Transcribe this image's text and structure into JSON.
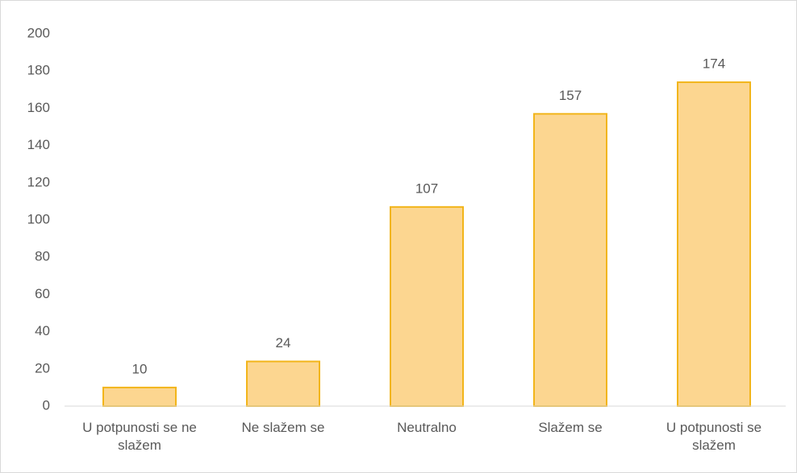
{
  "chart_data": {
    "type": "bar",
    "categories": [
      "U potpunosti se ne slažem",
      "Ne slažem se",
      "Neutralno",
      "Slažem se",
      "U potpunosti se slažem"
    ],
    "values": [
      10,
      24,
      107,
      157,
      174
    ],
    "color": "#fcd690",
    "edge_color": "#f2b51a",
    "ylim": [
      0,
      200
    ],
    "yticks": [
      0,
      20,
      40,
      60,
      80,
      100,
      120,
      140,
      160,
      180,
      200
    ],
    "grid": false
  }
}
